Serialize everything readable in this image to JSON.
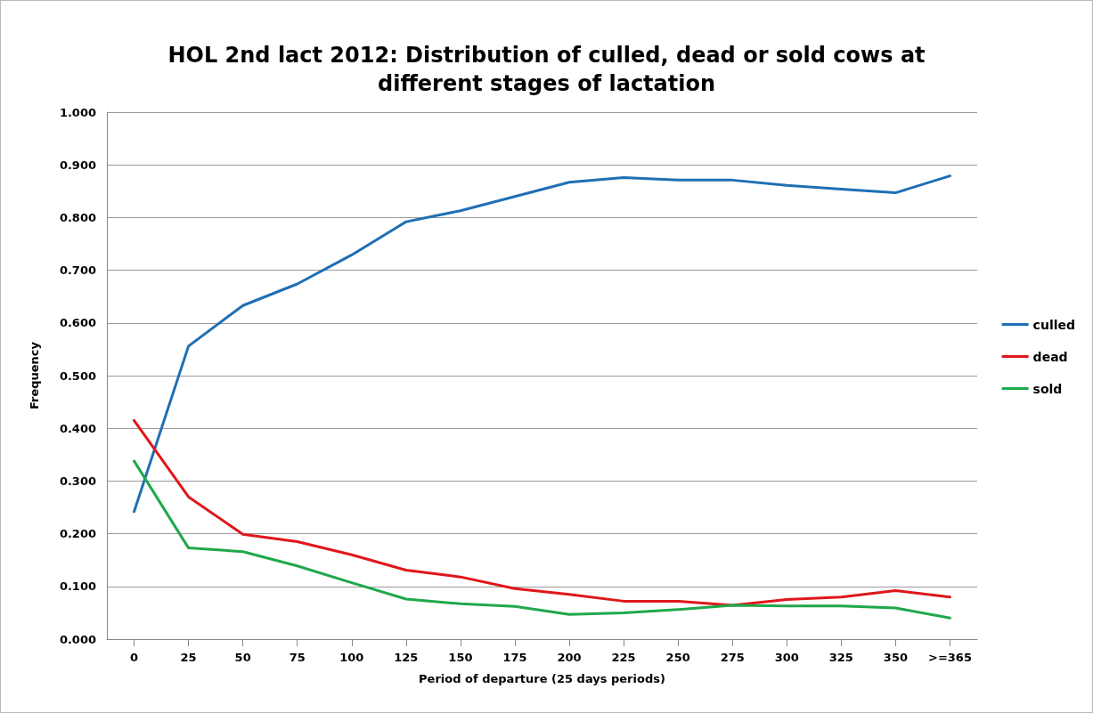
{
  "chart_data": {
    "type": "line",
    "title": "HOL 2nd lact 2012: Distribution of culled, dead or sold cows at\ndifferent stages of lactation",
    "xlabel": "Period of departure (25 days periods)",
    "ylabel": "Frequency",
    "categories": [
      "0",
      "25",
      "50",
      "75",
      "100",
      "125",
      "150",
      "175",
      "200",
      "225",
      "250",
      "275",
      "300",
      "325",
      "350",
      ">=365"
    ],
    "series": [
      {
        "name": "culled",
        "color": "#1f6fb4",
        "values": [
          0.242,
          0.556,
          0.633,
          0.674,
          0.729,
          0.792,
          0.813,
          0.84,
          0.867,
          0.876,
          0.871,
          0.871,
          0.861,
          0.854,
          0.847,
          0.879
        ]
      },
      {
        "name": "dead",
        "color": "#e0161b",
        "values": [
          0.415,
          0.27,
          0.199,
          0.185,
          0.16,
          0.131,
          0.118,
          0.096,
          0.085,
          0.072,
          0.072,
          0.064,
          0.075,
          0.08,
          0.092,
          0.08
        ]
      },
      {
        "name": "sold",
        "color": "#1fa84b",
        "values": [
          0.338,
          0.173,
          0.166,
          0.139,
          0.107,
          0.076,
          0.067,
          0.062,
          0.047,
          0.05,
          0.056,
          0.064,
          0.063,
          0.063,
          0.059,
          0.04
        ]
      }
    ],
    "ylim": [
      0,
      1
    ],
    "yticks": [
      {
        "value": 0,
        "label": "0.000"
      },
      {
        "value": 0.1,
        "label": "0.100"
      },
      {
        "value": 0.2,
        "label": "0.200"
      },
      {
        "value": 0.3,
        "label": "0.300"
      },
      {
        "value": 0.4,
        "label": "0.400"
      },
      {
        "value": 0.5,
        "label": "0.500"
      },
      {
        "value": 0.6,
        "label": "0.600"
      },
      {
        "value": 0.7,
        "label": "0.700"
      },
      {
        "value": 0.8,
        "label": "0.800"
      },
      {
        "value": 0.9,
        "label": "0.900"
      },
      {
        "value": 1,
        "label": "1.000"
      }
    ],
    "grid": "y",
    "legend": "right",
    "marker": "none",
    "line_style": "solid"
  }
}
